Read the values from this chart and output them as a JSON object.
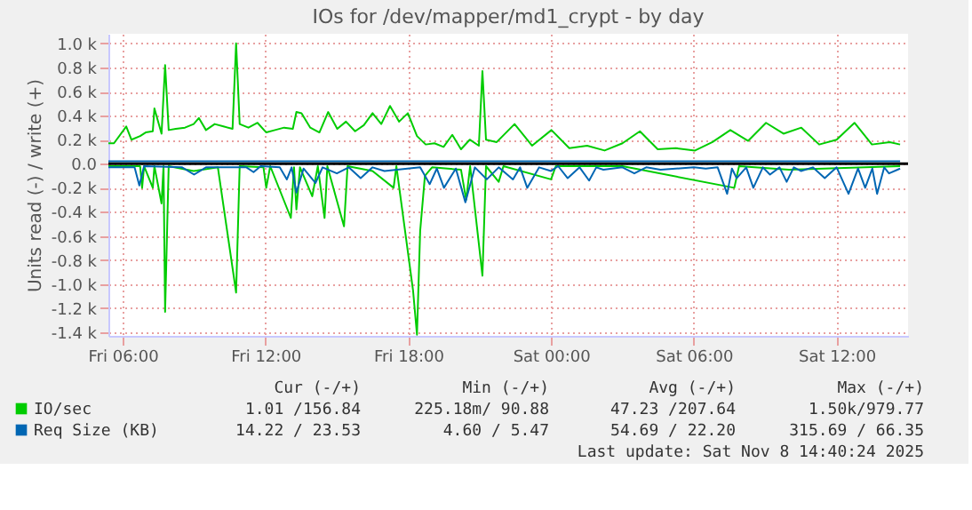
{
  "chart_data": {
    "type": "line",
    "title": "IOs for /dev/mapper/md1_crypt - by day",
    "ylabel": "Units read (-) / write (+)",
    "xlim": [
      "2025-11-07T05:24",
      "2025-11-08T15:00"
    ],
    "xticks": [
      {
        "value": "2025-11-07T06:00",
        "label": "Fri 06:00"
      },
      {
        "value": "2025-11-07T12:00",
        "label": "Fri 12:00"
      },
      {
        "value": "2025-11-07T18:00",
        "label": "Fri 18:00"
      },
      {
        "value": "2025-11-08T00:00",
        "label": "Sat 00:00"
      },
      {
        "value": "2025-11-08T06:00",
        "label": "Sat 06:00"
      },
      {
        "value": "2025-11-08T12:00",
        "label": "Sat 12:00"
      }
    ],
    "ylim": [
      -1430,
      1080
    ],
    "yticks": [
      {
        "value": -1400,
        "label": "-1.4 k"
      },
      {
        "value": -1200,
        "label": "-1.2 k"
      },
      {
        "value": -1000,
        "label": "-1.0 k"
      },
      {
        "value": -800,
        "label": "-0.8 k"
      },
      {
        "value": -600,
        "label": "-0.6 k"
      },
      {
        "value": -400,
        "label": "-0.4 k"
      },
      {
        "value": -200,
        "label": "-0.2 k"
      },
      {
        "value": 0,
        "label": "0.0"
      },
      {
        "value": 200,
        "label": "0.2 k"
      },
      {
        "value": 400,
        "label": "0.4 k"
      },
      {
        "value": 600,
        "label": "0.6 k"
      },
      {
        "value": 800,
        "label": "0.8 k"
      },
      {
        "value": 1000,
        "label": "1.0 k"
      }
    ],
    "grid": true,
    "legend": "bottom",
    "line_style": "solid",
    "ref_lines": [
      {
        "axis": "y",
        "value": 0,
        "color": "#000000"
      }
    ],
    "series": [
      {
        "name": "IO/sec",
        "color": "#00cc00",
        "x": [
          "2025-11-07T05:24",
          "2025-11-07T05:38",
          "2025-11-07T06:09",
          "2025-11-07T06:22",
          "2025-11-07T06:44",
          "2025-11-07T06:58",
          "2025-11-07T07:16",
          "2025-11-07T07:20",
          "2025-11-07T07:38",
          "2025-11-07T07:47",
          "2025-11-07T07:56",
          "2025-11-07T08:14",
          "2025-11-07T08:37",
          "2025-11-07T08:59",
          "2025-11-07T09:12",
          "2025-11-07T09:30",
          "2025-11-07T09:52",
          "2025-11-07T10:14",
          "2025-11-07T10:37",
          "2025-11-07T10:46",
          "2025-11-07T10:55",
          "2025-11-07T11:17",
          "2025-11-07T11:40",
          "2025-11-07T12:02",
          "2025-11-07T12:24",
          "2025-11-07T12:47",
          "2025-11-07T13:09",
          "2025-11-07T13:18",
          "2025-11-07T13:31",
          "2025-11-07T13:53",
          "2025-11-07T14:16",
          "2025-11-07T14:38",
          "2025-11-07T15:01",
          "2025-11-07T15:23",
          "2025-11-07T15:46",
          "2025-11-07T16:08",
          "2025-11-07T16:30",
          "2025-11-07T16:52",
          "2025-11-07T17:14",
          "2025-11-07T17:37",
          "2025-11-07T17:59",
          "2025-11-07T18:22",
          "2025-11-07T18:44",
          "2025-11-07T19:06",
          "2025-11-07T19:29",
          "2025-11-07T19:51",
          "2025-11-07T20:13",
          "2025-11-07T20:35",
          "2025-11-07T20:58",
          "2025-11-07T21:07",
          "2025-11-07T21:16",
          "2025-11-07T21:43",
          "2025-11-07T22:28",
          "2025-11-07T23:12",
          "2025-11-08T00:01",
          "2025-11-08T00:46",
          "2025-11-08T01:31",
          "2025-11-08T02:15",
          "2025-11-08T03:00",
          "2025-11-08T03:44",
          "2025-11-08T04:29",
          "2025-11-08T05:14",
          "2025-11-08T06:03",
          "2025-11-08T06:47",
          "2025-11-08T07:32",
          "2025-11-08T08:17",
          "2025-11-08T09:02",
          "2025-11-08T09:46",
          "2025-11-08T10:31",
          "2025-11-08T11:16",
          "2025-11-08T12:00",
          "2025-11-08T12:45",
          "2025-11-08T13:29",
          "2025-11-08T14:14",
          "2025-11-08T14:40"
        ],
        "values": [
          170,
          170,
          310,
          200,
          230,
          260,
          270,
          460,
          250,
          820,
          280,
          290,
          300,
          330,
          380,
          280,
          330,
          310,
          290,
          1000,
          330,
          300,
          340,
          260,
          280,
          300,
          290,
          430,
          420,
          300,
          260,
          430,
          290,
          350,
          270,
          320,
          420,
          330,
          480,
          350,
          420,
          230,
          160,
          170,
          140,
          240,
          120,
          200,
          150,
          770,
          200,
          180,
          330,
          150,
          280,
          130,
          150,
          110,
          170,
          270,
          120,
          130,
          110,
          180,
          280,
          190,
          340,
          250,
          300,
          160,
          200,
          340,
          160,
          180,
          160
        ]
      },
      {
        "color": "#00cc00",
        "x": [
          "2025-11-07T05:24",
          "2025-11-07T06:44",
          "2025-11-07T06:49",
          "2025-11-07T06:54",
          "2025-11-07T07:16",
          "2025-11-07T07:20",
          "2025-11-07T07:38",
          "2025-11-07T07:43",
          "2025-11-07T07:47",
          "2025-11-07T07:56",
          "2025-11-07T08:59",
          "2025-11-07T10:00",
          "2025-11-07T10:46",
          "2025-11-07T10:55",
          "2025-11-07T11:55",
          "2025-11-07T12:02",
          "2025-11-07T12:12",
          "2025-11-07T13:04",
          "2025-11-07T13:12",
          "2025-11-07T13:18",
          "2025-11-07T13:27",
          "2025-11-07T13:58",
          "2025-11-07T14:12",
          "2025-11-07T14:29",
          "2025-11-07T14:36",
          "2025-11-07T15:18",
          "2025-11-07T15:27",
          "2025-11-07T16:30",
          "2025-11-07T17:23",
          "2025-11-07T17:30",
          "2025-11-07T18:12",
          "2025-11-07T18:22",
          "2025-11-07T18:30",
          "2025-11-07T18:42",
          "2025-11-07T19:00",
          "2025-11-07T20:13",
          "2025-11-07T20:26",
          "2025-11-07T20:36",
          "2025-11-07T21:07",
          "2025-11-07T21:16",
          "2025-11-07T21:48",
          "2025-11-07T22:00",
          "2025-11-08T00:00",
          "2025-11-08T00:12",
          "2025-11-08T03:00",
          "2025-11-08T07:42",
          "2025-11-08T07:54",
          "2025-11-08T10:00",
          "2025-11-08T14:40"
        ],
        "values": [
          -20,
          -20,
          -200,
          -20,
          -200,
          -20,
          -330,
          -20,
          -1230,
          -20,
          -60,
          -30,
          -1070,
          -20,
          -30,
          -200,
          -20,
          -450,
          -30,
          -380,
          -30,
          -270,
          -20,
          -450,
          -20,
          -520,
          -20,
          -60,
          -200,
          -20,
          -1050,
          -1420,
          -560,
          -100,
          -30,
          -50,
          -300,
          -20,
          -930,
          -20,
          -150,
          -20,
          -130,
          -20,
          -20,
          -200,
          -20,
          -50,
          -20
        ]
      },
      {
        "name": "Req Size (KB)",
        "color": "#0066b3",
        "x": [
          "2025-11-07T05:24",
          "2025-11-07T10:00",
          "2025-11-07T15:00",
          "2025-11-07T20:00",
          "2025-11-08T01:00",
          "2025-11-08T06:00",
          "2025-11-08T11:00",
          "2025-11-08T14:40"
        ],
        "values": [
          20,
          20,
          20,
          20,
          20,
          20,
          20,
          20
        ]
      },
      {
        "color": "#0066b3",
        "x": [
          "2025-11-07T05:24",
          "2025-11-07T06:30",
          "2025-11-07T06:42",
          "2025-11-07T06:54",
          "2025-11-07T08:30",
          "2025-11-07T09:00",
          "2025-11-07T09:30",
          "2025-11-07T11:12",
          "2025-11-07T11:30",
          "2025-11-07T11:48",
          "2025-11-07T12:36",
          "2025-11-07T12:54",
          "2025-11-07T13:06",
          "2025-11-07T13:18",
          "2025-11-07T13:36",
          "2025-11-07T14:06",
          "2025-11-07T14:24",
          "2025-11-07T15:00",
          "2025-11-07T15:30",
          "2025-11-07T16:00",
          "2025-11-07T16:30",
          "2025-11-07T17:00",
          "2025-11-07T18:30",
          "2025-11-07T18:54",
          "2025-11-07T19:12",
          "2025-11-07T19:30",
          "2025-11-07T20:00",
          "2025-11-07T20:24",
          "2025-11-07T20:48",
          "2025-11-07T21:18",
          "2025-11-07T21:48",
          "2025-11-07T22:24",
          "2025-11-07T22:42",
          "2025-11-07T23:00",
          "2025-11-07T23:30",
          "2025-11-08T00:00",
          "2025-11-08T00:18",
          "2025-11-08T00:42",
          "2025-11-08T01:12",
          "2025-11-08T01:36",
          "2025-11-08T01:54",
          "2025-11-08T02:12",
          "2025-11-08T03:00",
          "2025-11-08T03:30",
          "2025-11-08T04:00",
          "2025-11-08T04:36",
          "2025-11-08T06:00",
          "2025-11-08T06:30",
          "2025-11-08T07:00",
          "2025-11-08T07:24",
          "2025-11-08T07:36",
          "2025-11-08T07:48",
          "2025-11-08T08:12",
          "2025-11-08T08:30",
          "2025-11-08T08:54",
          "2025-11-08T09:12",
          "2025-11-08T09:36",
          "2025-11-08T09:54",
          "2025-11-08T10:12",
          "2025-11-08T10:30",
          "2025-11-08T11:00",
          "2025-11-08T11:30",
          "2025-11-08T12:00",
          "2025-11-08T12:30",
          "2025-11-08T12:54",
          "2025-11-08T13:12",
          "2025-11-08T13:30",
          "2025-11-08T13:42",
          "2025-11-08T14:00",
          "2025-11-08T14:12",
          "2025-11-08T14:40"
        ],
        "values": [
          -30,
          -30,
          -180,
          -20,
          -30,
          -90,
          -30,
          -30,
          -70,
          -20,
          -30,
          -130,
          -30,
          -240,
          -40,
          -160,
          -30,
          -80,
          -30,
          -120,
          -30,
          -60,
          -30,
          -170,
          -40,
          -200,
          -40,
          -320,
          -30,
          -130,
          -30,
          -130,
          -30,
          -200,
          -30,
          -60,
          -20,
          -120,
          -30,
          -140,
          -30,
          -50,
          -30,
          -80,
          -30,
          -50,
          -30,
          -40,
          -30,
          -250,
          -40,
          -120,
          -30,
          -200,
          -30,
          -90,
          -30,
          -150,
          -30,
          -60,
          -30,
          -120,
          -30,
          -250,
          -40,
          -200,
          -40,
          -250,
          -30,
          -80,
          -40
        ]
      }
    ],
    "annotations": [
      "Cur (-/+)",
      "Min (-/+)",
      "Avg (-/+)",
      "Max (-/+)",
      "1.01 /156.84",
      "225.18m/ 90.88",
      "47.23 /207.64",
      "1.50k/979.77",
      "14.22 / 23.53",
      "4.60 /  5.47",
      "54.69 / 22.20",
      "315.69 / 66.35",
      "Last update: Sat Nov  8 14:40:24 2025"
    ]
  }
}
